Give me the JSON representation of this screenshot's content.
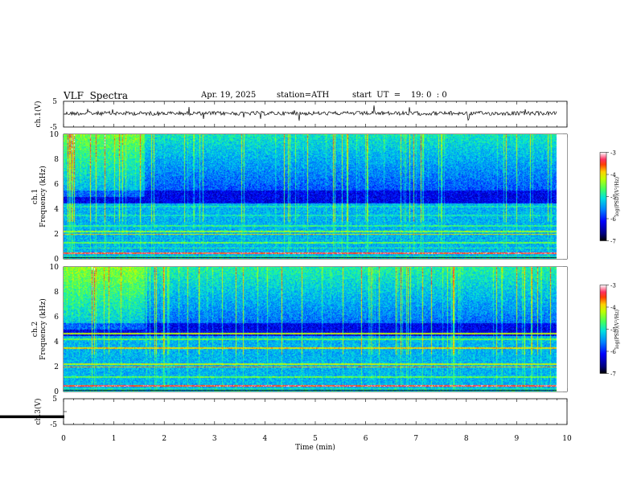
{
  "header": {
    "title": "VLF  Spectra",
    "date": "Apr. 19, 2025",
    "station": "station=ATH",
    "start": "start  UT  =    19: 0  : 0"
  },
  "colors": {
    "colormap": [
      "#00007f",
      "#0000ff",
      "#0060ff",
      "#00c8ff",
      "#40ffd0",
      "#9aff60",
      "#ffff00",
      "#ff9000",
      "#ff0000",
      "#ffffff"
    ],
    "trace": "#000000",
    "axes": "#000000"
  },
  "chart_data": [
    {
      "type": "line",
      "panel": "ch1",
      "ylabel": "ch.1(V)",
      "ylim": [
        -5,
        5
      ],
      "yticks": [
        "5",
        "-5"
      ],
      "xlim": [
        0,
        10
      ],
      "description_values": "noisy waveform centered near 0 V",
      "series": [
        {
          "values_mean": 0
        }
      ]
    },
    {
      "type": "heatmap",
      "panel": "ch1-spectrogram",
      "ylabel": "ch.1\nFrequency  (kHz)",
      "ylabel_line1": "ch.1",
      "ylabel_line2": "Frequency  (kHz)",
      "ylim": [
        0,
        10
      ],
      "yticks": [
        "0",
        "2",
        "4",
        "6",
        "8",
        "10"
      ],
      "xlim": [
        0,
        10
      ],
      "data_end_min": 9.8,
      "colorbar": {
        "label": "log(PSD)(V²/Hz)",
        "range": [
          -7,
          -3
        ],
        "ticks": [
          "-3",
          "-4",
          "-5",
          "-6",
          "-7"
        ]
      }
    },
    {
      "type": "heatmap",
      "panel": "ch2-spectrogram",
      "ylabel_line1": "ch.2",
      "ylabel_line2": "Frequency  (kHz)",
      "ylim": [
        0,
        10
      ],
      "yticks": [
        "0",
        "2",
        "4",
        "6",
        "8",
        "10"
      ],
      "xlim": [
        0,
        10
      ],
      "data_end_min": 9.8,
      "colorbar": {
        "label": "log(PSD)(V²/Hz)",
        "range": [
          -7,
          -3
        ],
        "ticks": [
          "-3",
          "-4",
          "-5",
          "-6",
          "-7"
        ]
      }
    },
    {
      "type": "line",
      "panel": "ch3",
      "ylabel": "ch.3(V)",
      "ylim": [
        -5,
        5
      ],
      "yticks": [
        "5",
        "-5"
      ],
      "xlim": [
        0,
        10
      ],
      "series": [
        {
          "values_mean": -2
        }
      ],
      "xlabel": "Time  (min)",
      "xticks": [
        "0",
        "1",
        "2",
        "3",
        "4",
        "5",
        "6",
        "7",
        "8",
        "9",
        "10"
      ]
    }
  ],
  "labels": {
    "ch1_volts": "ch.1(V)",
    "ch3_volts": "ch.3(V)",
    "ch1_freq_a": "ch.1",
    "ch1_freq_b": "Frequency  (kHz)",
    "ch2_freq_a": "ch.2",
    "ch2_freq_b": "Frequency  (kHz)",
    "cbar": "log(PSD)(V²/Hz)",
    "xlabel": "Time  (min)"
  }
}
